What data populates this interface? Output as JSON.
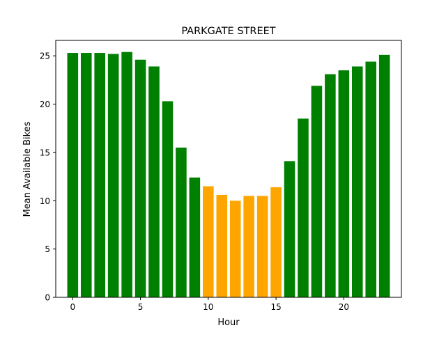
{
  "chart_data": {
    "type": "bar",
    "title": "PARKGATE STREET",
    "xlabel": "Hour",
    "ylabel": "Mean Available Bikes",
    "categories": [
      0,
      1,
      2,
      3,
      4,
      5,
      6,
      7,
      8,
      9,
      10,
      11,
      12,
      13,
      14,
      15,
      16,
      17,
      18,
      19,
      20,
      21,
      22,
      23
    ],
    "values": [
      25.3,
      25.3,
      25.3,
      25.2,
      25.4,
      24.6,
      23.9,
      20.3,
      15.5,
      12.4,
      11.5,
      10.6,
      10.0,
      10.5,
      10.5,
      11.4,
      14.1,
      18.5,
      21.9,
      23.1,
      23.5,
      23.9,
      24.4,
      25.1
    ],
    "bar_colors": [
      "#008000",
      "#008000",
      "#008000",
      "#008000",
      "#008000",
      "#008000",
      "#008000",
      "#008000",
      "#008000",
      "#008000",
      "#ffa500",
      "#ffa500",
      "#ffa500",
      "#ffa500",
      "#ffa500",
      "#ffa500",
      "#008000",
      "#008000",
      "#008000",
      "#008000",
      "#008000",
      "#008000",
      "#008000",
      "#008000"
    ],
    "xticks": [
      0,
      5,
      10,
      15,
      20
    ],
    "yticks": [
      0,
      5,
      10,
      15,
      20,
      25
    ],
    "xlim": [
      -1.25,
      24.25
    ],
    "ylim": [
      0,
      26.6
    ],
    "grid": false,
    "legend": "none"
  }
}
